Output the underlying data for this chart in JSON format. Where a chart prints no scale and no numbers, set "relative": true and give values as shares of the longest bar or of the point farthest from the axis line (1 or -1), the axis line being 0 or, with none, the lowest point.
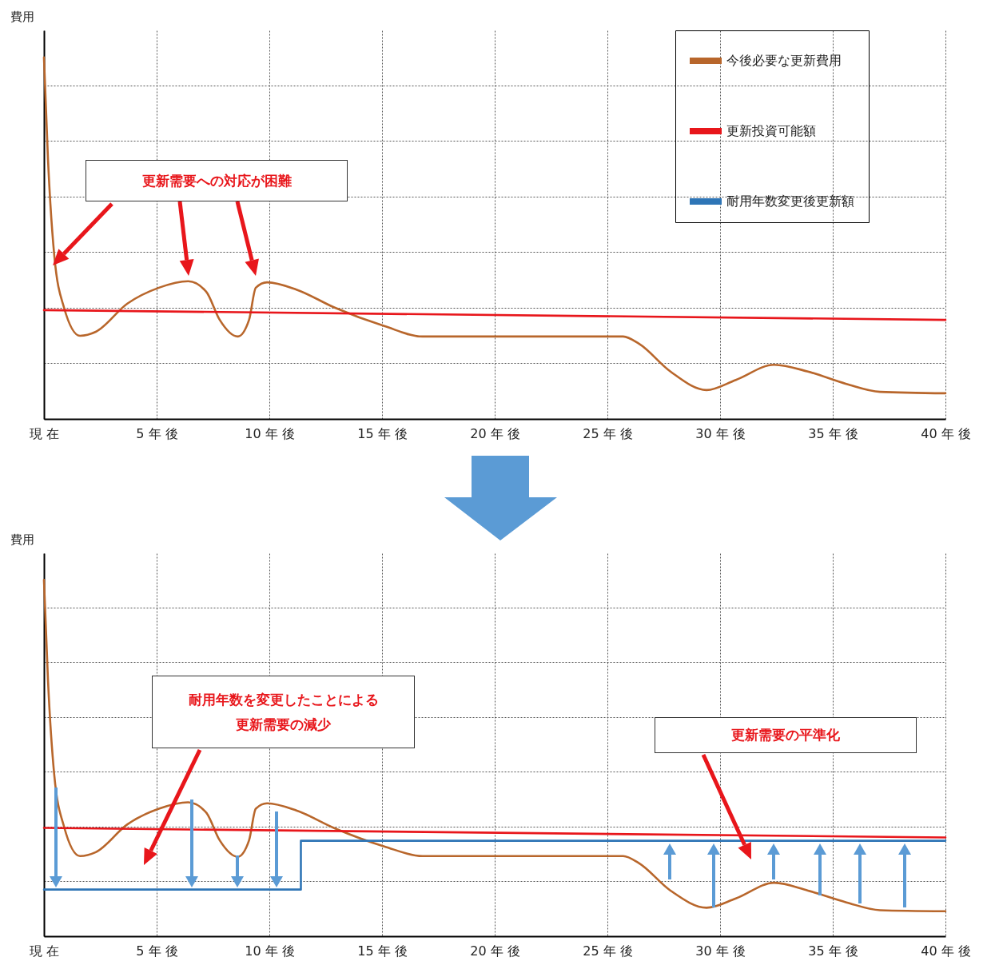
{
  "chart_data": [
    {
      "type": "line",
      "relative": true,
      "ylabel": "費用",
      "xlim": [
        0,
        40
      ],
      "xticks": [
        {
          "value": 0,
          "label": "現 在"
        },
        {
          "value": 5,
          "label": "5 年 後"
        },
        {
          "value": 10,
          "label": "10 年 後"
        },
        {
          "value": 15,
          "label": "15 年 後"
        },
        {
          "value": 20,
          "label": "20 年 後"
        },
        {
          "value": 25,
          "label": "25 年 後"
        },
        {
          "value": 30,
          "label": "30 年 後"
        },
        {
          "value": 35,
          "label": "35 年 後"
        },
        {
          "value": 40,
          "label": "40 年 後"
        }
      ],
      "grid": true,
      "legend": "top right",
      "annotations": [
        "更新需要への対応が困難"
      ],
      "series": [
        {
          "name": "今後必要な更新費用",
          "color": "#b8662b",
          "x": [
            0,
            0.18,
            0.46,
            0.89,
            1.6,
            2.3,
            3.7,
            5.1,
            6.4,
            7.2,
            7.8,
            8.6,
            9.1,
            9.4,
            9.9,
            11.2,
            12.9,
            15.1,
            16.8,
            25.7,
            26.4,
            27.8,
            29.4,
            30.7,
            32.4,
            33.9,
            35.6,
            37.1,
            40
          ],
          "values": [
            1.0,
            0.717,
            0.451,
            0.308,
            0.23,
            0.241,
            0.319,
            0.363,
            0.381,
            0.352,
            0.274,
            0.228,
            0.274,
            0.363,
            0.378,
            0.358,
            0.308,
            0.257,
            0.228,
            0.228,
            0.208,
            0.131,
            0.08,
            0.108,
            0.15,
            0.131,
            0.097,
            0.075,
            0.071
          ]
        },
        {
          "name": "更新投資可能額",
          "color": "#e8161b",
          "x": [
            0,
            40
          ],
          "values": [
            0.301,
            0.274
          ]
        },
        {
          "name": "耐用年数変更後更新額",
          "color": "#2e75b6"
        }
      ]
    },
    {
      "type": "line",
      "relative": true,
      "ylabel": "費用",
      "xlim": [
        0,
        40
      ],
      "xticks": [
        {
          "value": 0,
          "label": "現 在"
        },
        {
          "value": 5,
          "label": "5 年 後"
        },
        {
          "value": 10,
          "label": "10 年 後"
        },
        {
          "value": 15,
          "label": "15 年 後"
        },
        {
          "value": 20,
          "label": "20 年 後"
        },
        {
          "value": 25,
          "label": "25 年 後"
        },
        {
          "value": 30,
          "label": "30 年 後"
        },
        {
          "value": 35,
          "label": "35 年 後"
        },
        {
          "value": 40,
          "label": "40 年 後"
        }
      ],
      "grid": true,
      "annotations": [
        "耐用年数を変更したことによる更新需要の減少",
        "更新需要の平準化"
      ],
      "series": [
        {
          "color": "#b8662b",
          "x": [
            0,
            0.18,
            0.46,
            0.89,
            1.6,
            2.3,
            3.7,
            5.1,
            6.4,
            7.2,
            7.8,
            8.6,
            9.1,
            9.4,
            9.9,
            11.2,
            12.9,
            15.1,
            16.8,
            25.7,
            26.4,
            27.8,
            29.4,
            30.7,
            32.4,
            33.9,
            35.6,
            37.1,
            40
          ],
          "values": [
            1.0,
            0.717,
            0.451,
            0.308,
            0.225,
            0.236,
            0.314,
            0.358,
            0.376,
            0.347,
            0.269,
            0.223,
            0.269,
            0.358,
            0.373,
            0.353,
            0.303,
            0.252,
            0.225,
            0.225,
            0.205,
            0.128,
            0.08,
            0.106,
            0.15,
            0.128,
            0.095,
            0.073,
            0.07
          ]
        },
        {
          "color": "#e8161b",
          "x": [
            0,
            40
          ],
          "values": [
            0.304,
            0.277
          ]
        },
        {
          "color": "#2e75b6",
          "type": "step",
          "x": [
            0,
            11.4,
            40
          ],
          "values": [
            0.131,
            0.268,
            0.268
          ]
        }
      ]
    }
  ]
}
